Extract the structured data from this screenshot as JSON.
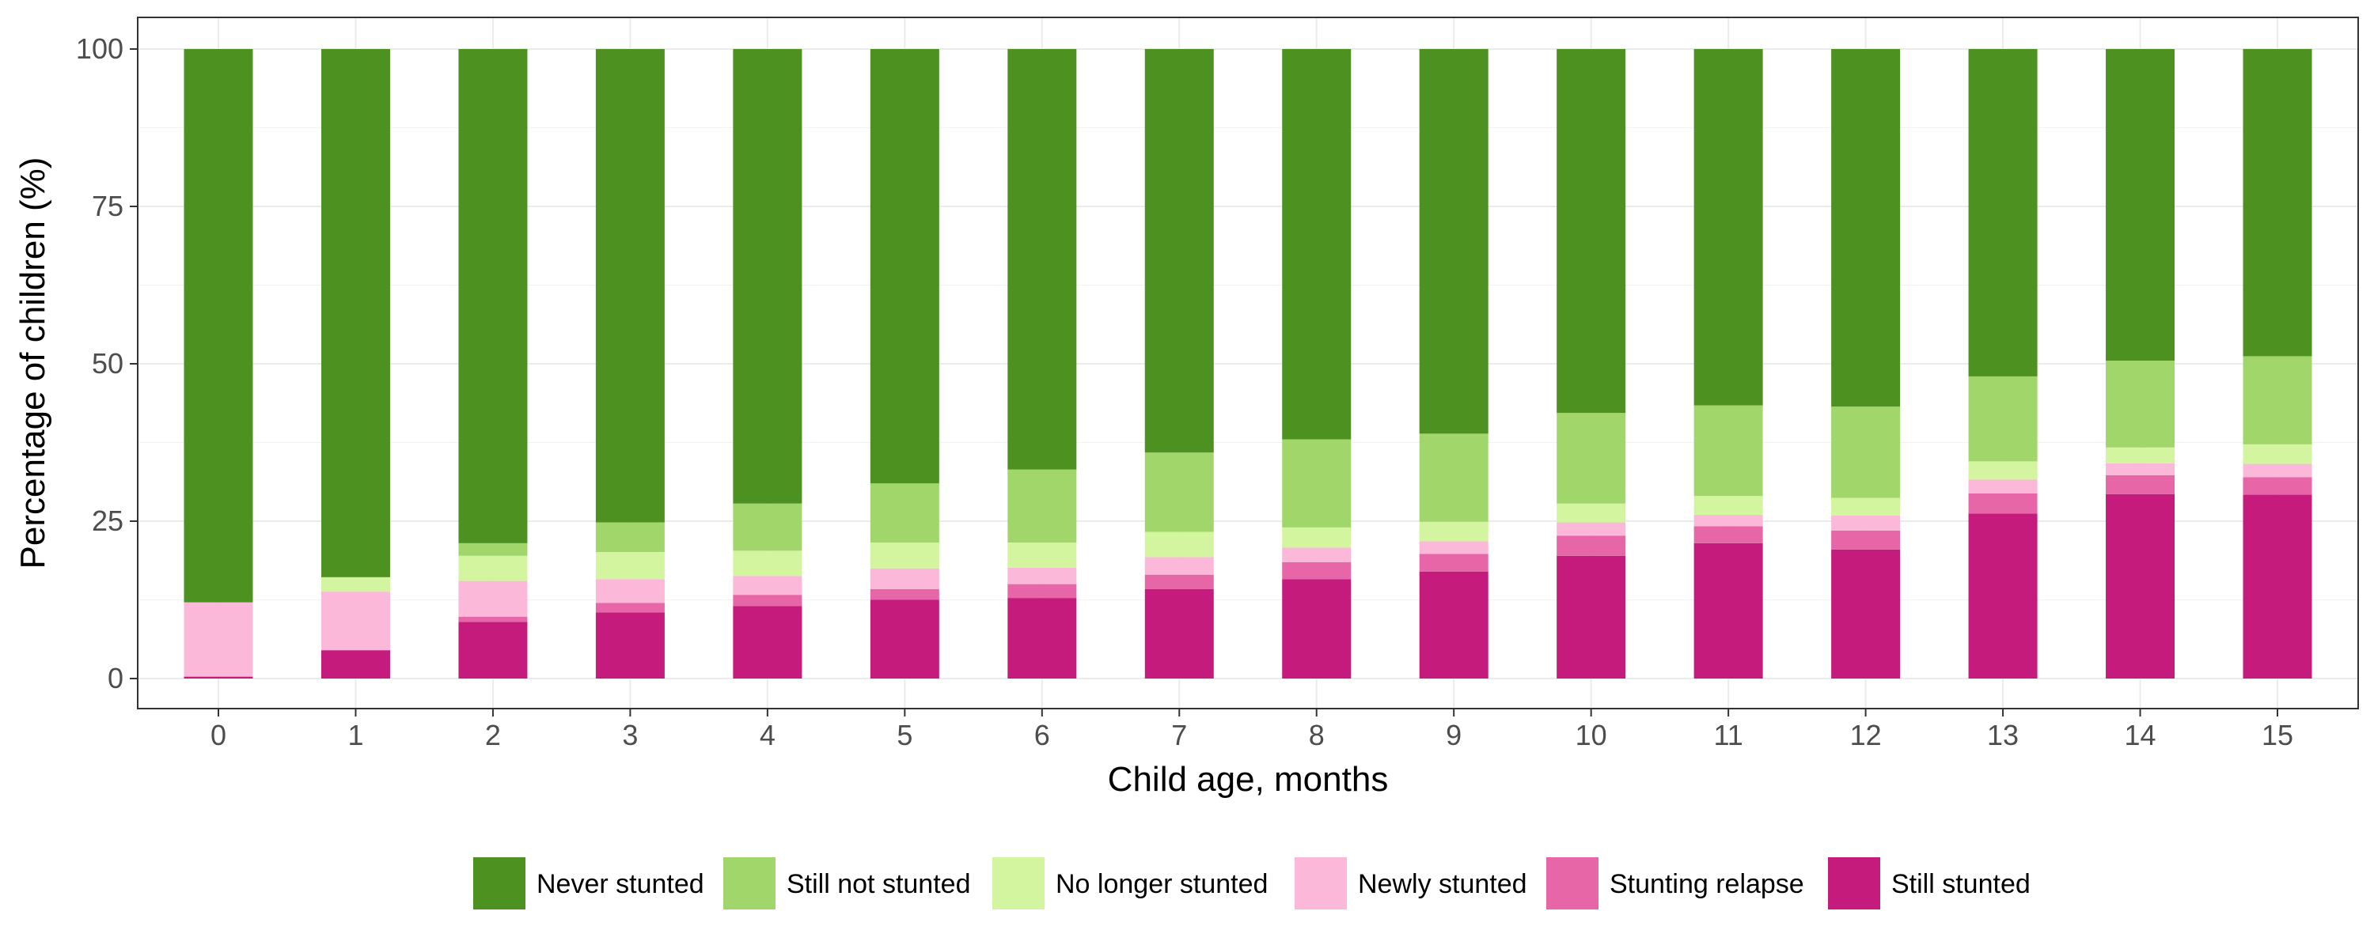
{
  "chart_data": {
    "type": "bar",
    "stacked": true,
    "xlabel": "Child age, months",
    "ylabel": "Percentage of children (%)",
    "categories": [
      "0",
      "1",
      "2",
      "3",
      "4",
      "5",
      "6",
      "7",
      "8",
      "9",
      "10",
      "11",
      "12",
      "13",
      "14",
      "15"
    ],
    "ylim": [
      0,
      100
    ],
    "yticks": [
      0,
      25,
      50,
      75,
      100
    ],
    "grid": true,
    "legend_position": "bottom",
    "series": [
      {
        "name": "Still stunted",
        "color": "#c51b7d",
        "values": [
          0.3,
          4.5,
          9.0,
          10.5,
          11.5,
          12.5,
          12.8,
          14.2,
          15.8,
          17.0,
          19.5,
          21.5,
          20.5,
          26.2,
          29.3,
          29.2
        ]
      },
      {
        "name": "Stunting relapse",
        "color": "#e766a7",
        "values": [
          0,
          0,
          0.8,
          1.5,
          1.8,
          1.7,
          2.2,
          2.3,
          2.7,
          2.8,
          3.2,
          2.7,
          3.0,
          3.2,
          3.0,
          2.8
        ]
      },
      {
        "name": "Newly stunted",
        "color": "#fbb8d8",
        "values": [
          11.8,
          9.3,
          5.7,
          3.8,
          3.0,
          3.3,
          2.6,
          2.8,
          2.3,
          2.0,
          2.1,
          1.8,
          2.4,
          2.2,
          1.9,
          2.1
        ]
      },
      {
        "name": "No longer stunted",
        "color": "#d3f59f",
        "values": [
          0,
          2.3,
          4.0,
          4.3,
          4.0,
          4.1,
          4.0,
          4.0,
          3.2,
          3.1,
          3.0,
          3.0,
          2.8,
          2.9,
          2.5,
          3.1
        ]
      },
      {
        "name": "Still not stunted",
        "color": "#a1d76a",
        "values": [
          0,
          0,
          2.0,
          4.7,
          7.5,
          9.4,
          11.6,
          12.6,
          14.0,
          14.0,
          14.4,
          14.4,
          14.5,
          13.5,
          13.8,
          14.0
        ]
      },
      {
        "name": "Never stunted",
        "color": "#4d9221",
        "values": [
          87.9,
          83.9,
          78.5,
          75.2,
          72.2,
          69.0,
          66.8,
          64.1,
          62.0,
          61.1,
          57.8,
          56.6,
          56.8,
          52.0,
          49.5,
          48.8
        ]
      }
    ],
    "legend_order": [
      "Never stunted",
      "Still not stunted",
      "No longer stunted",
      "Newly stunted",
      "Stunting relapse",
      "Still stunted"
    ]
  }
}
